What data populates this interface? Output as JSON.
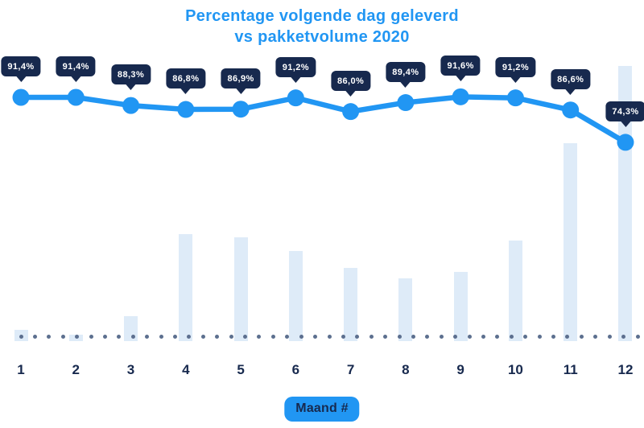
{
  "title": {
    "line1": "Percentage volgende dag geleverd",
    "line2": "vs pakketvolume 2020"
  },
  "colors": {
    "accent_blue": "#2196F3",
    "navy": "#17294E",
    "bar_fill": "#DEEBF8",
    "baseline_dot": "#5C6F8F",
    "tooltip_text": "#FFFFFF",
    "background": "#FFFFFF"
  },
  "xaxis": {
    "title": "Maand #",
    "tick_labels": [
      "1",
      "2",
      "3",
      "4",
      "5",
      "6",
      "7",
      "8",
      "9",
      "10",
      "11",
      "12"
    ]
  },
  "chart_data": {
    "type": "line+bar combo",
    "title": "Percentage volgende dag geleverd vs pakketvolume 2020",
    "categories": [
      "1",
      "2",
      "3",
      "4",
      "5",
      "6",
      "7",
      "8",
      "9",
      "10",
      "11",
      "12"
    ],
    "xlabel": "Maand #",
    "ylabel": "",
    "grid": "off",
    "legend": "none",
    "series": [
      {
        "name": "Percentage volgende dag geleverd",
        "type": "line",
        "color": "#2196F3",
        "values": [
          91.4,
          91.4,
          88.3,
          86.8,
          86.9,
          91.2,
          86.0,
          89.4,
          91.6,
          91.2,
          86.6,
          74.3
        ],
        "labels": [
          "91,4%",
          "91,4%",
          "88,3%",
          "86,8%",
          "86,9%",
          "91,2%",
          "86,0%",
          "89,4%",
          "91,6%",
          "91,2%",
          "86,6%",
          "74,3%"
        ]
      },
      {
        "name": "Pakketvolume 2020",
        "type": "bar",
        "color": "#DEEBF8",
        "values_relative_pct_of_max": [
          4.1,
          2.3,
          9.2,
          38.9,
          37.7,
          32.7,
          26.6,
          22.8,
          25.1,
          36.5,
          71.9,
          100
        ]
      }
    ]
  }
}
